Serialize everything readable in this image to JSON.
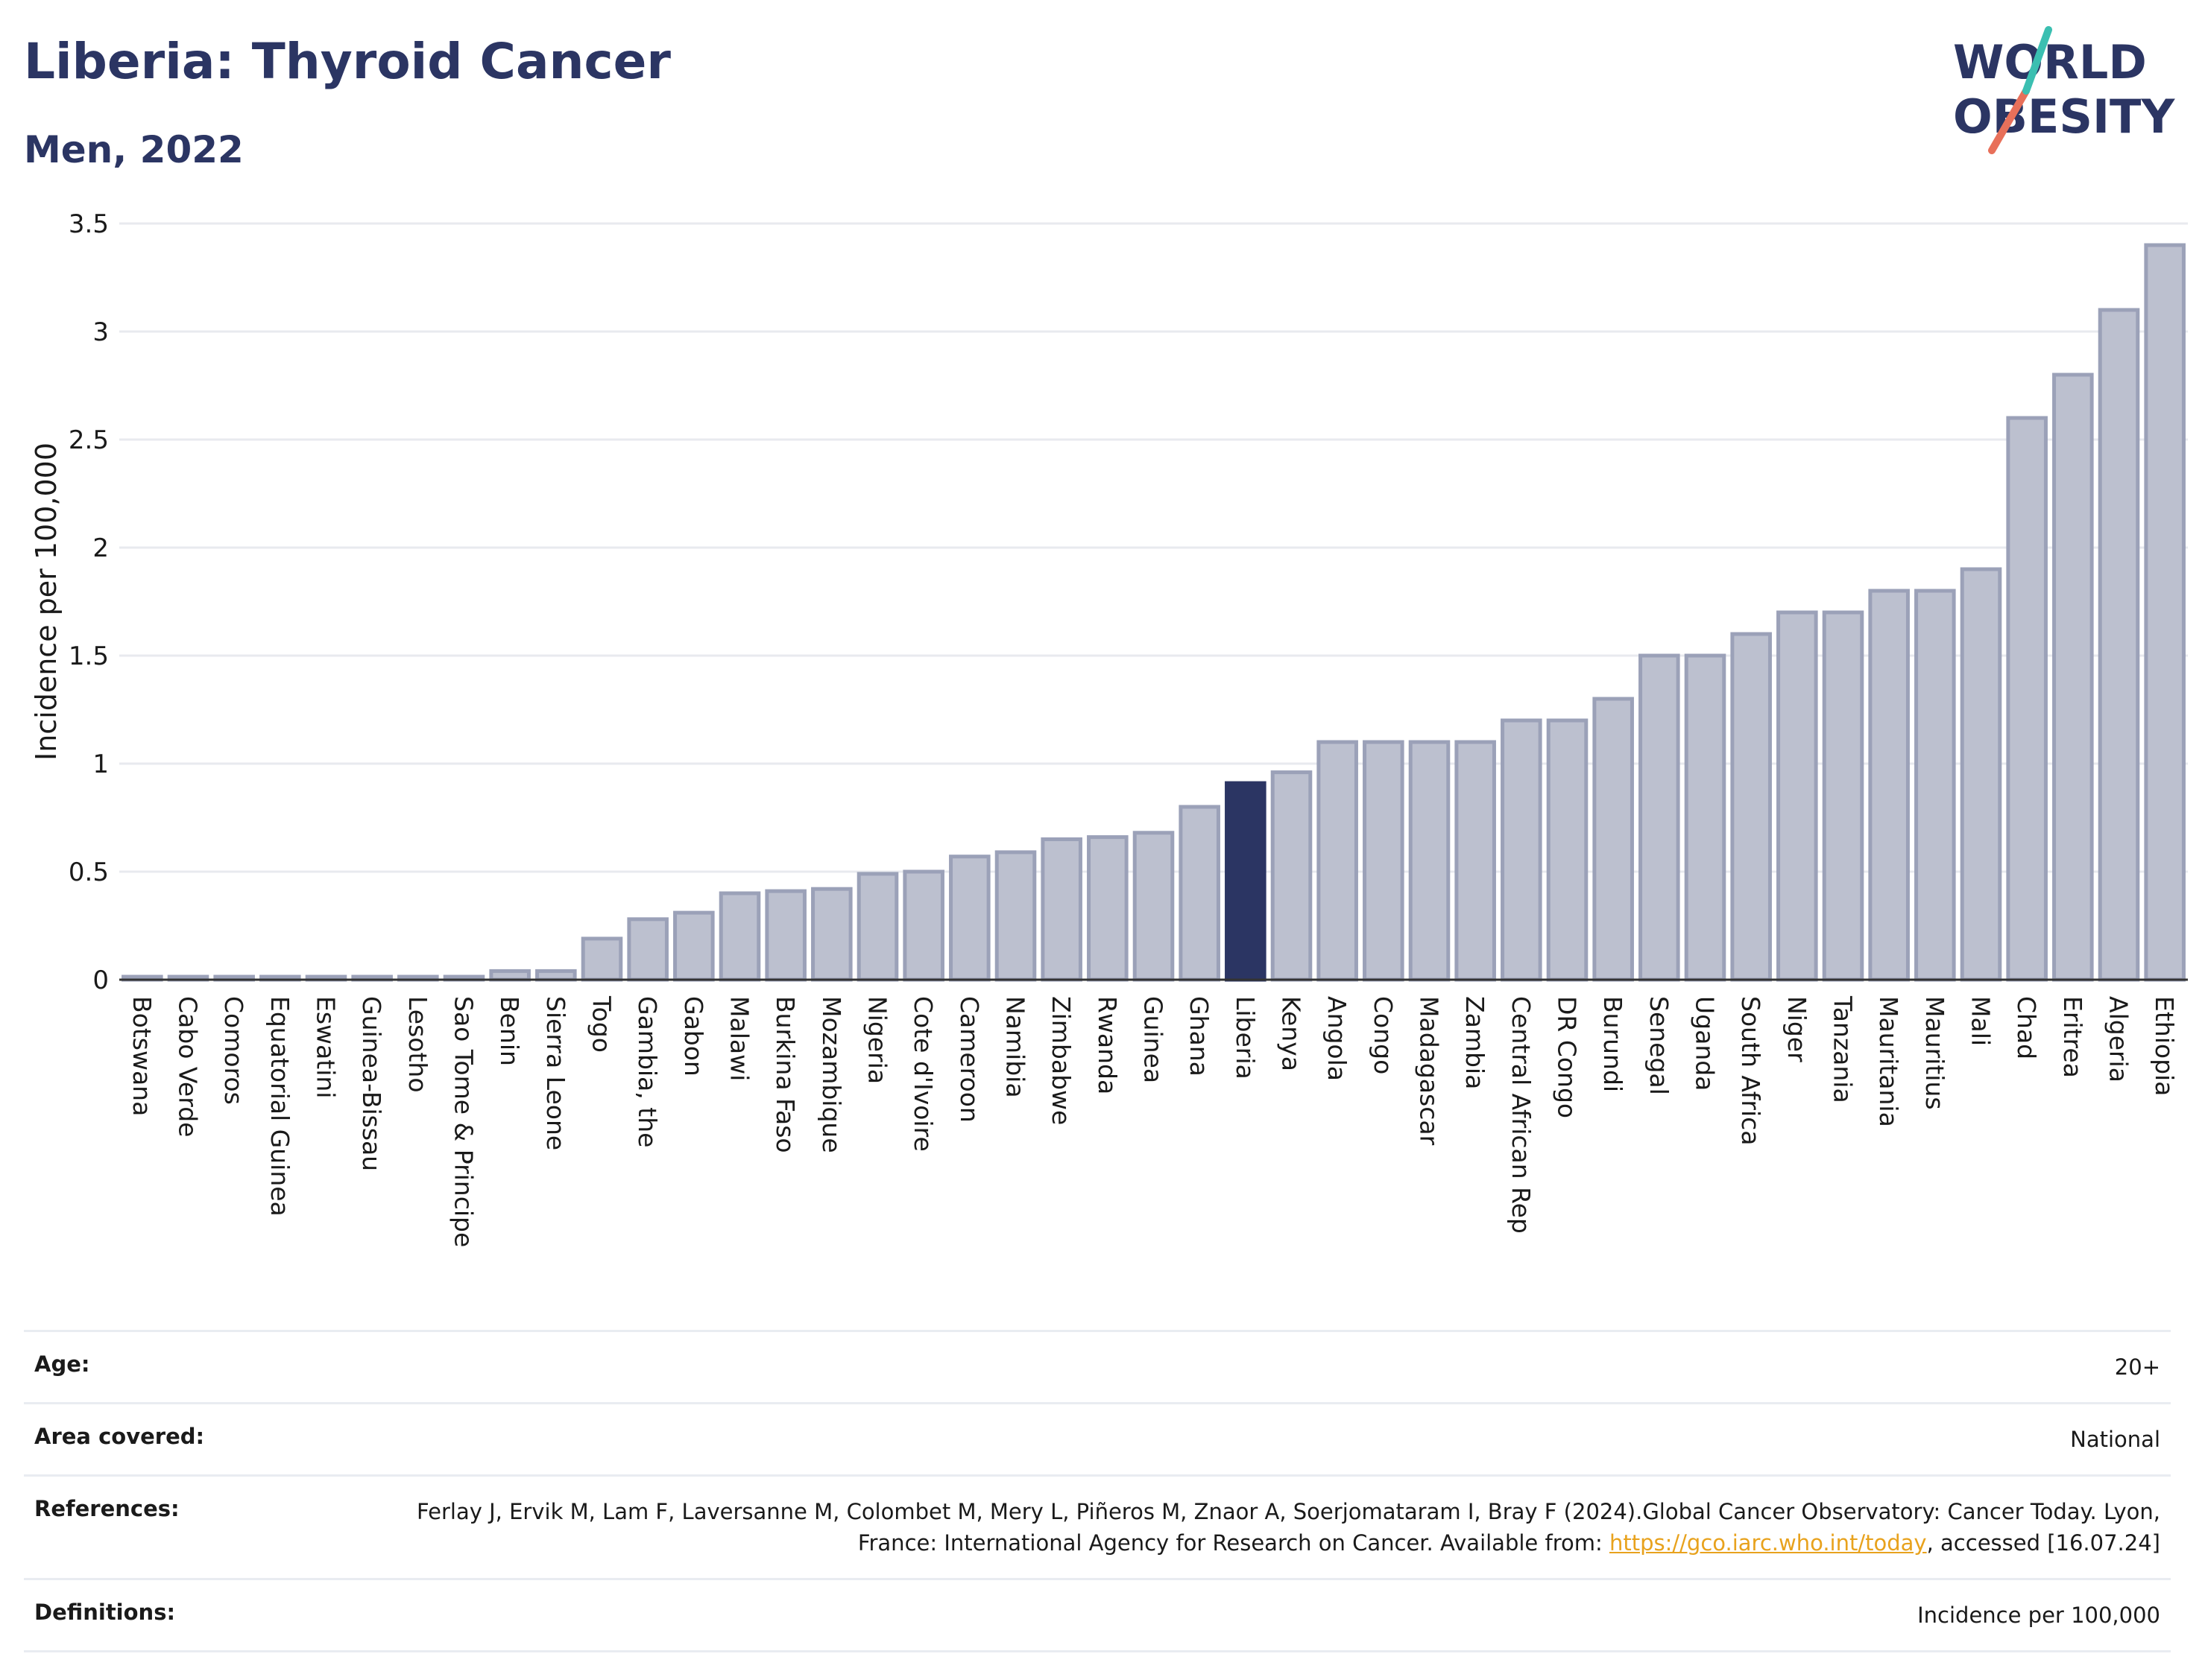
{
  "header": {
    "title": "Liberia: Thyroid Cancer",
    "subtitle": "Men, 2022"
  },
  "logo": {
    "line1": "WORLD",
    "line2": "OBESITY",
    "text_color": "#2b3563",
    "accent_colors": [
      "#e8705a",
      "#3bbfb1"
    ]
  },
  "colors": {
    "bar": "#bcc0cf",
    "bar_stroke": "#9ba1b8",
    "highlight": "#2b3563",
    "grid": "#e8eaef",
    "axis": "#333333"
  },
  "chart_data": {
    "type": "bar",
    "title": "",
    "xlabel": "",
    "ylabel": "Incidence per 100,000",
    "ylim": [
      0,
      3.5
    ],
    "yticks": [
      0,
      0.5,
      1,
      1.5,
      2,
      2.5,
      3,
      3.5
    ],
    "ytick_labels": [
      "0",
      "0.5",
      "1",
      "1.5",
      "2",
      "2.5",
      "3",
      "3.5"
    ],
    "grid": true,
    "highlight": "Liberia",
    "categories": [
      "Botswana",
      "Cabo Verde",
      "Comoros",
      "Equatorial Guinea",
      "Eswatini",
      "Guinea-Bissau",
      "Lesotho",
      "Sao Tome & Principe",
      "Benin",
      "Sierra Leone",
      "Togo",
      "Gambia, the",
      "Gabon",
      "Malawi",
      "Burkina Faso",
      "Mozambique",
      "Nigeria",
      "Cote d'Ivoire",
      "Cameroon",
      "Namibia",
      "Zimbabwe",
      "Rwanda",
      "Guinea",
      "Ghana",
      "Liberia",
      "Kenya",
      "Angola",
      "Congo",
      "Madagascar",
      "Zambia",
      "Central African Rep",
      "DR Congo",
      "Burundi",
      "Senegal",
      "Uganda",
      "South Africa",
      "Niger",
      "Tanzania",
      "Mauritania",
      "Mauritius",
      "Mali",
      "Chad",
      "Eritrea",
      "Algeria",
      "Ethiopia"
    ],
    "values": [
      0,
      0,
      0,
      0,
      0,
      0,
      0,
      0,
      0.04,
      0.04,
      0.19,
      0.28,
      0.31,
      0.4,
      0.41,
      0.42,
      0.49,
      0.5,
      0.57,
      0.59,
      0.65,
      0.66,
      0.68,
      0.8,
      0.91,
      0.96,
      1.1,
      1.1,
      1.1,
      1.1,
      1.2,
      1.2,
      1.3,
      1.5,
      1.5,
      1.6,
      1.7,
      1.7,
      1.8,
      1.8,
      1.9,
      2.6,
      2.8,
      3.1,
      3.4
    ]
  },
  "info": {
    "age_label": "Age:",
    "age_value": "20+",
    "area_label": "Area covered:",
    "area_value": "National",
    "references_label": "References:",
    "references_text": "Ferlay J, Ervik M, Lam F, Laversanne M, Colombet M, Mery L, Piñeros M, Znaor A, Soerjomataram I, Bray F (2024).Global Cancer Observatory: Cancer Today. Lyon, France: International Agency for Research on Cancer. Available from: ",
    "references_link": "https://gco.iarc.who.int/today",
    "references_suffix": ", accessed [16.07.24]",
    "definitions_label": "Definitions:",
    "definitions_value": "Incidence per 100,000"
  }
}
